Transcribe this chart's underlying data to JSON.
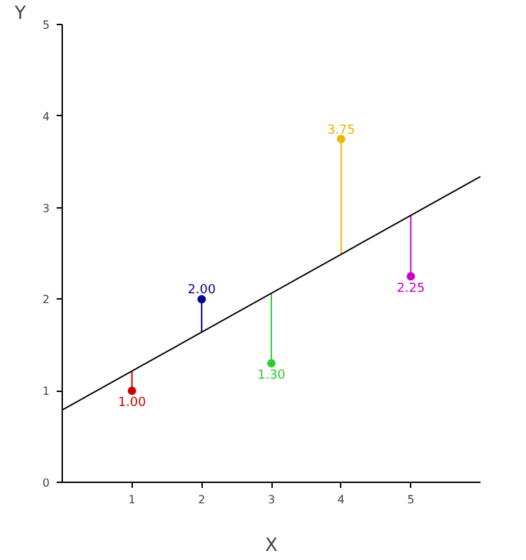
{
  "chart_data": {
    "type": "scatter",
    "xlabel": "X",
    "ylabel": "Y",
    "xlim": [
      0,
      6
    ],
    "ylim": [
      0,
      5
    ],
    "xticks": [
      1,
      2,
      3,
      4,
      5
    ],
    "yticks": [
      0,
      1,
      2,
      3,
      4,
      5
    ],
    "grid": false,
    "series": [
      {
        "marker": "circle",
        "x": [
          1,
          2,
          3,
          4,
          5
        ],
        "values": [
          1.0,
          2.0,
          1.3,
          3.75,
          2.25
        ],
        "colors": [
          "#cc0000",
          "#000099",
          "#33cc33",
          "#e6b800",
          "#cc00cc"
        ],
        "errors": [
          [
            1.0,
            1.21
          ],
          [
            1.635,
            2.0
          ],
          [
            1.3,
            2.06
          ],
          [
            2.485,
            3.75
          ],
          [
            2.25,
            2.91
          ]
        ],
        "value_labels": [
          "1.00",
          "2.00",
          "1.30",
          "3.75",
          "2.25"
        ]
      },
      {
        "type": "line",
        "x": [
          0,
          6
        ],
        "values": [
          0.79,
          3.34
        ],
        "color": "#000000"
      }
    ]
  }
}
